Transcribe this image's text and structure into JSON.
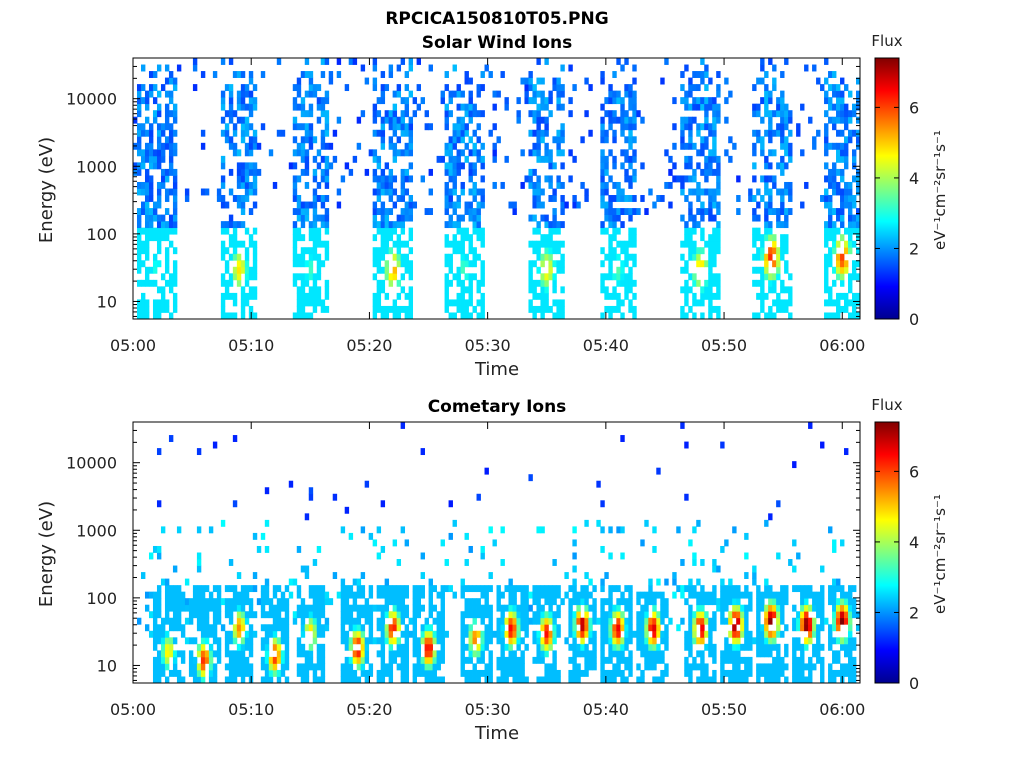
{
  "figure": {
    "title": "RPCICA150810T05.PNG"
  },
  "colorbar": {
    "title": "Flux",
    "unit_label": "eV⁻¹cm⁻²sr⁻¹s⁻¹",
    "ticks": [
      "0",
      "2",
      "4",
      "6"
    ],
    "range": [
      0,
      7.4
    ],
    "colormap": "jet"
  },
  "chart_data": [
    {
      "type": "heatmap",
      "title": "Solar Wind Ions",
      "xlabel": "Time",
      "ylabel": "Energy (eV)",
      "x_tick_labels": [
        "05:00",
        "05:10",
        "05:20",
        "05:30",
        "05:40",
        "05:50",
        "06:00"
      ],
      "x_ticks_min": [
        0,
        10,
        20,
        30,
        40,
        50,
        60
      ],
      "xlim_min": [
        0,
        61.5
      ],
      "y_tick_labels": [
        "10",
        "100",
        "1000",
        "10000"
      ],
      "y_ticks": [
        10,
        100,
        1000,
        10000
      ],
      "ylim": [
        5.5,
        40000
      ],
      "yscale": "log",
      "zlabel": "Flux",
      "zlim": [
        0,
        7.4
      ],
      "bursts": [
        {
          "t": 2.0,
          "peak_energy": 30,
          "peak_flux": 3.0
        },
        {
          "t": 9.0,
          "peak_energy": 30,
          "peak_flux": 4.8
        },
        {
          "t": 15.0,
          "peak_energy": 30,
          "peak_flux": 3.2
        },
        {
          "t": 22.0,
          "peak_energy": 30,
          "peak_flux": 5.2
        },
        {
          "t": 28.0,
          "peak_energy": 30,
          "peak_flux": 3.3
        },
        {
          "t": 35.0,
          "peak_energy": 30,
          "peak_flux": 4.8
        },
        {
          "t": 41.0,
          "peak_energy": 30,
          "peak_flux": 3.4
        },
        {
          "t": 48.0,
          "peak_energy": 30,
          "peak_flux": 5.0
        },
        {
          "t": 54.0,
          "peak_energy": 45,
          "peak_flux": 6.2
        },
        {
          "t": 60.0,
          "peak_energy": 45,
          "peak_flux": 6.0
        }
      ]
    },
    {
      "type": "heatmap",
      "title": "Cometary Ions",
      "xlabel": "Time",
      "ylabel": "Energy (eV)",
      "x_tick_labels": [
        "05:00",
        "05:10",
        "05:20",
        "05:30",
        "05:40",
        "05:50",
        "06:00"
      ],
      "x_ticks_min": [
        0,
        10,
        20,
        30,
        40,
        50,
        60
      ],
      "xlim_min": [
        0,
        61.5
      ],
      "y_tick_labels": [
        "10",
        "100",
        "1000",
        "10000"
      ],
      "y_ticks": [
        10,
        100,
        1000,
        10000
      ],
      "ylim": [
        5.5,
        40000
      ],
      "yscale": "log",
      "zlabel": "Flux",
      "zlim": [
        0,
        7.4
      ],
      "bursts": [
        {
          "t": 3.0,
          "peak_energy": 16,
          "peak_flux": 4.8
        },
        {
          "t": 6.0,
          "peak_energy": 12,
          "peak_flux": 6.2
        },
        {
          "t": 9.0,
          "peak_energy": 36,
          "peak_flux": 5.5
        },
        {
          "t": 12.0,
          "peak_energy": 14,
          "peak_flux": 6.2
        },
        {
          "t": 15.0,
          "peak_energy": 30,
          "peak_flux": 5.0
        },
        {
          "t": 19.0,
          "peak_energy": 18,
          "peak_flux": 6.6
        },
        {
          "t": 22.0,
          "peak_energy": 36,
          "peak_flux": 6.4
        },
        {
          "t": 25.0,
          "peak_energy": 18,
          "peak_flux": 6.6
        },
        {
          "t": 29.0,
          "peak_energy": 25,
          "peak_flux": 5.6
        },
        {
          "t": 32.0,
          "peak_energy": 35,
          "peak_flux": 6.5
        },
        {
          "t": 35.0,
          "peak_energy": 30,
          "peak_flux": 6.4
        },
        {
          "t": 38.0,
          "peak_energy": 40,
          "peak_flux": 7.0
        },
        {
          "t": 41.0,
          "peak_energy": 35,
          "peak_flux": 6.6
        },
        {
          "t": 44.0,
          "peak_energy": 35,
          "peak_flux": 6.8
        },
        {
          "t": 48.0,
          "peak_energy": 35,
          "peak_flux": 6.8
        },
        {
          "t": 51.0,
          "peak_energy": 40,
          "peak_flux": 7.3
        },
        {
          "t": 54.0,
          "peak_energy": 45,
          "peak_flux": 7.4
        },
        {
          "t": 57.0,
          "peak_energy": 40,
          "peak_flux": 7.4
        },
        {
          "t": 60.0,
          "peak_energy": 45,
          "peak_flux": 7.4
        }
      ]
    }
  ]
}
